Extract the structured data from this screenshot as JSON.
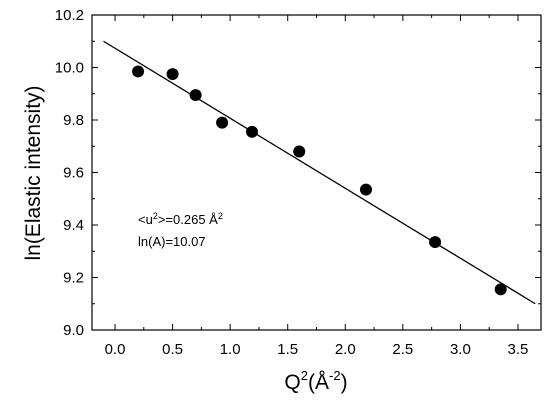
{
  "chart_data": {
    "type": "scatter",
    "title": "",
    "xlabel": {
      "base": "Q",
      "sup": "2",
      "open": "(Å",
      "sup2": "-2",
      "close": ")"
    },
    "ylabel": "ln(Elastic intensity)",
    "xlim": [
      -0.2,
      3.7
    ],
    "ylim": [
      9.0,
      10.2
    ],
    "xticks": [
      "0.0",
      "0.5",
      "1.0",
      "1.5",
      "2.0",
      "2.5",
      "3.0",
      "3.5"
    ],
    "yticks": [
      "9.0",
      "9.2",
      "9.4",
      "9.6",
      "9.8",
      "10.0",
      "10.2"
    ],
    "grid": false,
    "series": [
      {
        "marker": "filled-circle",
        "color": "#000000",
        "x": [
          0.2,
          0.5,
          0.7,
          0.93,
          1.19,
          1.6,
          2.18,
          2.78,
          3.35
        ],
        "y": [
          9.985,
          9.975,
          9.895,
          9.79,
          9.755,
          9.68,
          9.535,
          9.335,
          9.155
        ]
      }
    ],
    "fit_line": {
      "color": "#000000",
      "x": [
        -0.1,
        3.65
      ],
      "y": [
        10.1,
        9.1
      ]
    },
    "annotations": {
      "line1": {
        "prefix": "<u",
        "sup": "2",
        "suffix": ">=0.265 Å",
        "sup2": "2"
      },
      "line2": "ln(A)=10.07"
    }
  }
}
